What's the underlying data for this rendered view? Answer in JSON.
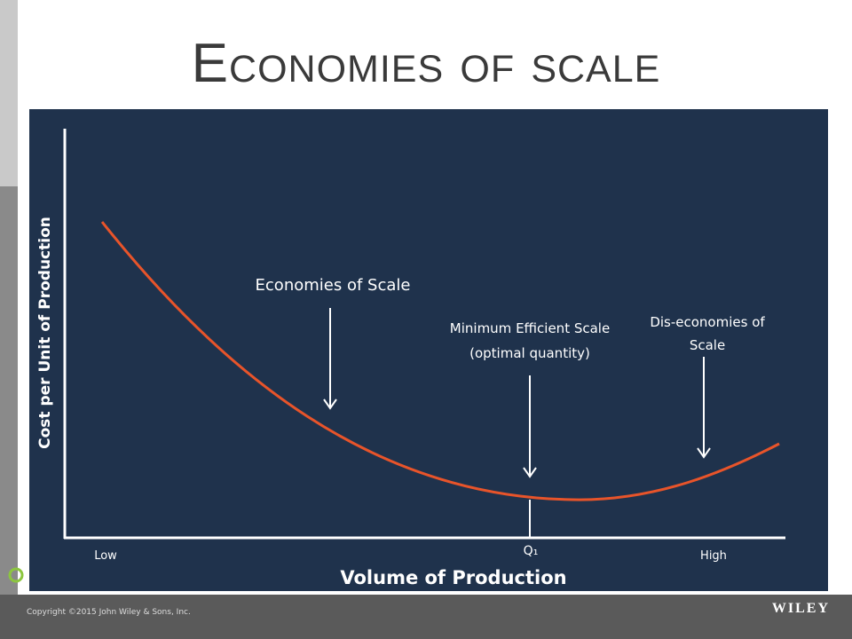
{
  "header": {
    "title": "Economies of scale"
  },
  "diagram": {
    "y_axis_label": "Cost per Unit of Production",
    "x_axis_label": "Volume of Production",
    "x_labels": {
      "low": "Low",
      "q1": "Q₁",
      "high": "High"
    },
    "annotations": [
      {
        "lines": [
          "Economies of Scale"
        ]
      },
      {
        "lines": [
          "Minimum Efficient Scale",
          "(optimal quantity)"
        ]
      },
      {
        "lines": [
          "Dis-economies of",
          "Scale"
        ]
      }
    ]
  },
  "footer": {
    "copyright": "Copyright ©2015 John Wiley & Sons, Inc.",
    "brand": "WILEY"
  }
}
